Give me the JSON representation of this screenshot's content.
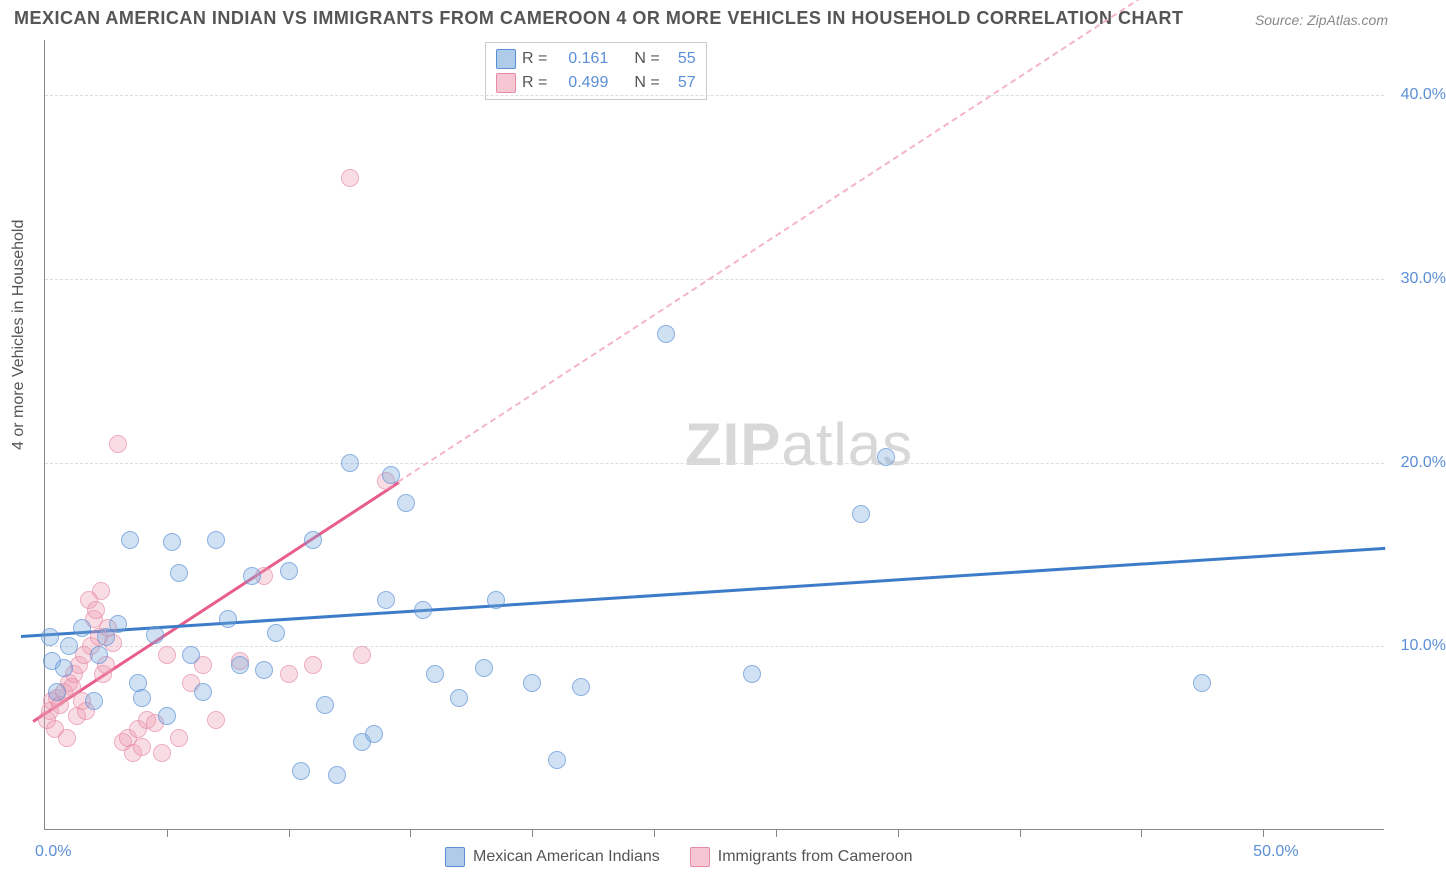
{
  "title": "MEXICAN AMERICAN INDIAN VS IMMIGRANTS FROM CAMEROON 4 OR MORE VEHICLES IN HOUSEHOLD CORRELATION CHART",
  "source": "Source: ZipAtlas.com",
  "ylabel": "4 or more Vehicles in Household",
  "watermark": {
    "bold": "ZIP",
    "light": "atlas"
  },
  "chart": {
    "type": "scatter",
    "xrange": [
      0,
      55
    ],
    "yrange": [
      0,
      43
    ],
    "xticks_minor": [
      5,
      10,
      15,
      20,
      25,
      30,
      35,
      40,
      45,
      50
    ],
    "yticks": [
      {
        "v": 10,
        "label": "10.0%"
      },
      {
        "v": 20,
        "label": "20.0%"
      },
      {
        "v": 30,
        "label": "30.0%"
      },
      {
        "v": 40,
        "label": "40.0%"
      }
    ],
    "xlabels": [
      {
        "v": 0,
        "label": "0.0%"
      },
      {
        "v": 50,
        "label": "50.0%"
      }
    ],
    "background_color": "#ffffff",
    "grid_color": "#dddddd",
    "axis_color": "#888888",
    "marker_radius": 9,
    "series": [
      {
        "name": "Mexican American Indians",
        "color_fill": "rgba(120,170,220,0.5)",
        "color_stroke": "#5b8fd6",
        "r_value": "0.161",
        "n_value": "55",
        "trend": {
          "x1": -1,
          "y1": 10.6,
          "x2": 55,
          "y2": 15.4,
          "color": "#3d7cc9",
          "style": "solid"
        },
        "points": [
          [
            0.2,
            10.5
          ],
          [
            0.3,
            9.2
          ],
          [
            0.5,
            7.5
          ],
          [
            0.8,
            8.8
          ],
          [
            1.0,
            10.0
          ],
          [
            1.5,
            11.0
          ],
          [
            2.0,
            7.0
          ],
          [
            2.2,
            9.5
          ],
          [
            2.5,
            10.5
          ],
          [
            3.0,
            11.2
          ],
          [
            3.5,
            15.8
          ],
          [
            3.8,
            8.0
          ],
          [
            4.0,
            7.2
          ],
          [
            4.5,
            10.6
          ],
          [
            5.0,
            6.2
          ],
          [
            5.2,
            15.7
          ],
          [
            5.5,
            14.0
          ],
          [
            6.0,
            9.5
          ],
          [
            6.5,
            7.5
          ],
          [
            7.0,
            15.8
          ],
          [
            7.5,
            11.5
          ],
          [
            8.0,
            9.0
          ],
          [
            8.5,
            13.8
          ],
          [
            9.0,
            8.7
          ],
          [
            9.5,
            10.7
          ],
          [
            10.0,
            14.1
          ],
          [
            10.5,
            3.2
          ],
          [
            11.0,
            15.8
          ],
          [
            11.5,
            6.8
          ],
          [
            12.0,
            3.0
          ],
          [
            12.5,
            20.0
          ],
          [
            13.0,
            4.8
          ],
          [
            13.5,
            5.2
          ],
          [
            14.0,
            12.5
          ],
          [
            14.2,
            19.3
          ],
          [
            14.8,
            17.8
          ],
          [
            15.5,
            12.0
          ],
          [
            16.0,
            8.5
          ],
          [
            17.0,
            7.2
          ],
          [
            18.0,
            8.8
          ],
          [
            18.5,
            12.5
          ],
          [
            20.0,
            8.0
          ],
          [
            21.0,
            3.8
          ],
          [
            22.0,
            7.8
          ],
          [
            25.5,
            27.0
          ],
          [
            29.0,
            8.5
          ],
          [
            33.5,
            17.2
          ],
          [
            34.5,
            20.3
          ],
          [
            47.5,
            8.0
          ]
        ]
      },
      {
        "name": "Immigrants from Cameroon",
        "color_fill": "rgba(240,160,180,0.5)",
        "color_stroke": "#e68aa5",
        "r_value": "0.499",
        "n_value": "57",
        "trend_solid": {
          "x1": -0.5,
          "y1": 6.0,
          "x2": 14.5,
          "y2": 19.0,
          "color": "#e85d8a"
        },
        "trend_dashed": {
          "x1": 14.5,
          "y1": 19.0,
          "x2": 55,
          "y2": 54.0,
          "color": "#f5b5c8"
        },
        "points": [
          [
            0.1,
            6.0
          ],
          [
            0.2,
            6.5
          ],
          [
            0.3,
            7.0
          ],
          [
            0.4,
            5.5
          ],
          [
            0.5,
            7.2
          ],
          [
            0.6,
            6.8
          ],
          [
            0.8,
            7.5
          ],
          [
            0.9,
            5.0
          ],
          [
            1.0,
            8.0
          ],
          [
            1.1,
            7.8
          ],
          [
            1.2,
            8.5
          ],
          [
            1.3,
            6.2
          ],
          [
            1.4,
            9.0
          ],
          [
            1.5,
            7.0
          ],
          [
            1.6,
            9.5
          ],
          [
            1.7,
            6.5
          ],
          [
            1.8,
            12.5
          ],
          [
            1.9,
            10.0
          ],
          [
            2.0,
            11.5
          ],
          [
            2.1,
            12.0
          ],
          [
            2.2,
            10.5
          ],
          [
            2.3,
            13.0
          ],
          [
            2.4,
            8.5
          ],
          [
            2.5,
            9.0
          ],
          [
            2.6,
            11.0
          ],
          [
            2.8,
            10.2
          ],
          [
            3.0,
            21.0
          ],
          [
            3.2,
            4.8
          ],
          [
            3.4,
            5.0
          ],
          [
            3.6,
            4.2
          ],
          [
            3.8,
            5.5
          ],
          [
            4.0,
            4.5
          ],
          [
            4.2,
            6.0
          ],
          [
            4.5,
            5.8
          ],
          [
            4.8,
            4.2
          ],
          [
            5.0,
            9.5
          ],
          [
            5.5,
            5.0
          ],
          [
            6.0,
            8.0
          ],
          [
            6.5,
            9.0
          ],
          [
            7.0,
            6.0
          ],
          [
            8.0,
            9.2
          ],
          [
            9.0,
            13.8
          ],
          [
            10.0,
            8.5
          ],
          [
            11.0,
            9.0
          ],
          [
            12.5,
            35.5
          ],
          [
            13.0,
            9.5
          ],
          [
            14.0,
            19.0
          ]
        ]
      }
    ]
  },
  "legend_top": {
    "rows": [
      {
        "swatch": "blue",
        "r_label": "R =",
        "r_val": "0.161",
        "n_label": "N =",
        "n_val": "55"
      },
      {
        "swatch": "pink",
        "r_label": "R =",
        "r_val": "0.499",
        "n_label": "N =",
        "n_val": "57"
      }
    ]
  },
  "legend_bottom": {
    "items": [
      {
        "swatch": "blue",
        "label": "Mexican American Indians"
      },
      {
        "swatch": "pink",
        "label": "Immigrants from Cameroon"
      }
    ]
  }
}
